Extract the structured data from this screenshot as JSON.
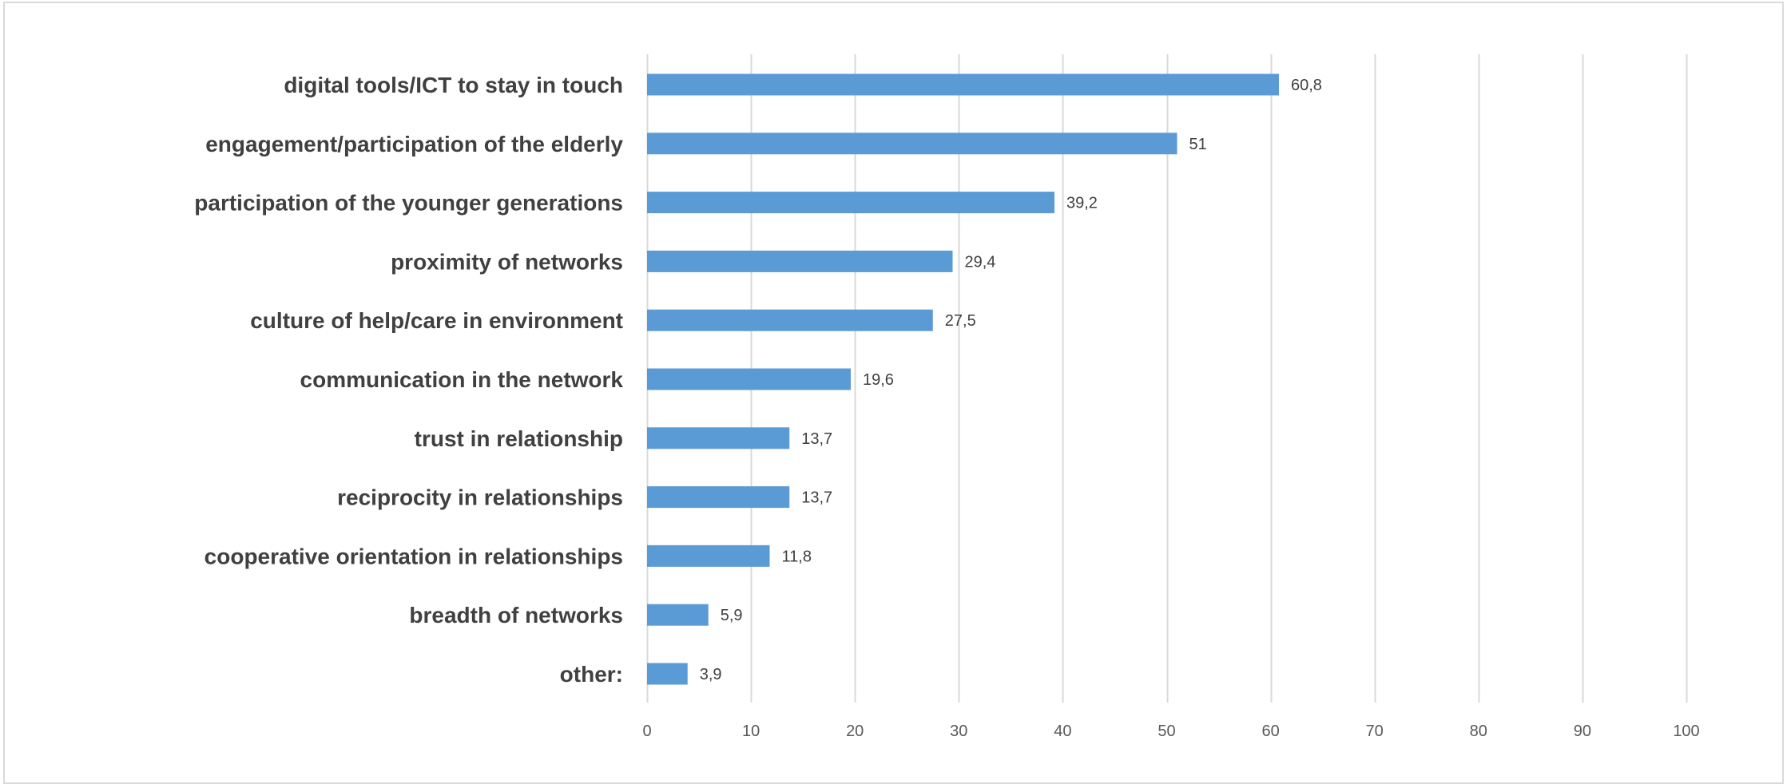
{
  "chart_data": {
    "type": "bar",
    "orientation": "horizontal",
    "categories": [
      "digital tools/ICT to stay in touch",
      "engagement/participation of the elderly",
      "participation of the younger generations",
      "proximity of networks",
      "culture of help/care in environment",
      "communication in the network",
      "trust in relationship",
      "reciprocity in relationships",
      "cooperative orientation in relationships",
      "breadth of networks",
      "other:"
    ],
    "values": [
      60.8,
      51,
      39.2,
      29.4,
      27.5,
      19.6,
      13.7,
      13.7,
      11.8,
      5.9,
      3.9
    ],
    "value_labels": [
      "60,8",
      "51",
      "39,2",
      "29,4",
      "27,5",
      "19,6",
      "13,7",
      "13,7",
      "11,8",
      "5,9",
      "3,9"
    ],
    "xlim": [
      0,
      100
    ],
    "x_ticks": [
      0,
      10,
      20,
      30,
      40,
      50,
      60,
      70,
      80,
      90,
      100
    ],
    "grid": "vertical",
    "bar_color": "#5b9bd5",
    "grid_color": "#d9d9d9",
    "legend": "none"
  }
}
